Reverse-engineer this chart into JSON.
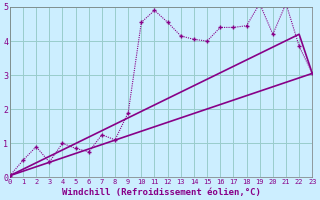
{
  "xlabel": "Windchill (Refroidissement éolien,°C)",
  "background_color": "#cceeff",
  "grid_color": "#99cccc",
  "line_color": "#880088",
  "xlim": [
    0,
    23
  ],
  "ylim": [
    0,
    5
  ],
  "xticks": [
    0,
    1,
    2,
    3,
    4,
    5,
    6,
    7,
    8,
    9,
    10,
    11,
    12,
    13,
    14,
    15,
    16,
    17,
    18,
    19,
    20,
    21,
    22,
    23
  ],
  "yticks": [
    0,
    1,
    2,
    3,
    4,
    5
  ],
  "series1_x": [
    0,
    1,
    2,
    3,
    4,
    5,
    6,
    7,
    8,
    9,
    10,
    11,
    12,
    13,
    14,
    15,
    16,
    17,
    18,
    19,
    20,
    21,
    22,
    23
  ],
  "series1_y": [
    0.05,
    0.5,
    0.9,
    0.45,
    1.0,
    0.85,
    0.75,
    1.25,
    1.1,
    1.9,
    4.55,
    4.9,
    4.55,
    4.15,
    4.05,
    4.0,
    4.4,
    4.4,
    4.45,
    5.1,
    4.2,
    5.1,
    3.85,
    3.05
  ],
  "series2_x": [
    0,
    22,
    23
  ],
  "series2_y": [
    0.05,
    4.2,
    3.05
  ],
  "series3_x": [
    0,
    23
  ],
  "series3_y": [
    0.05,
    3.05
  ]
}
